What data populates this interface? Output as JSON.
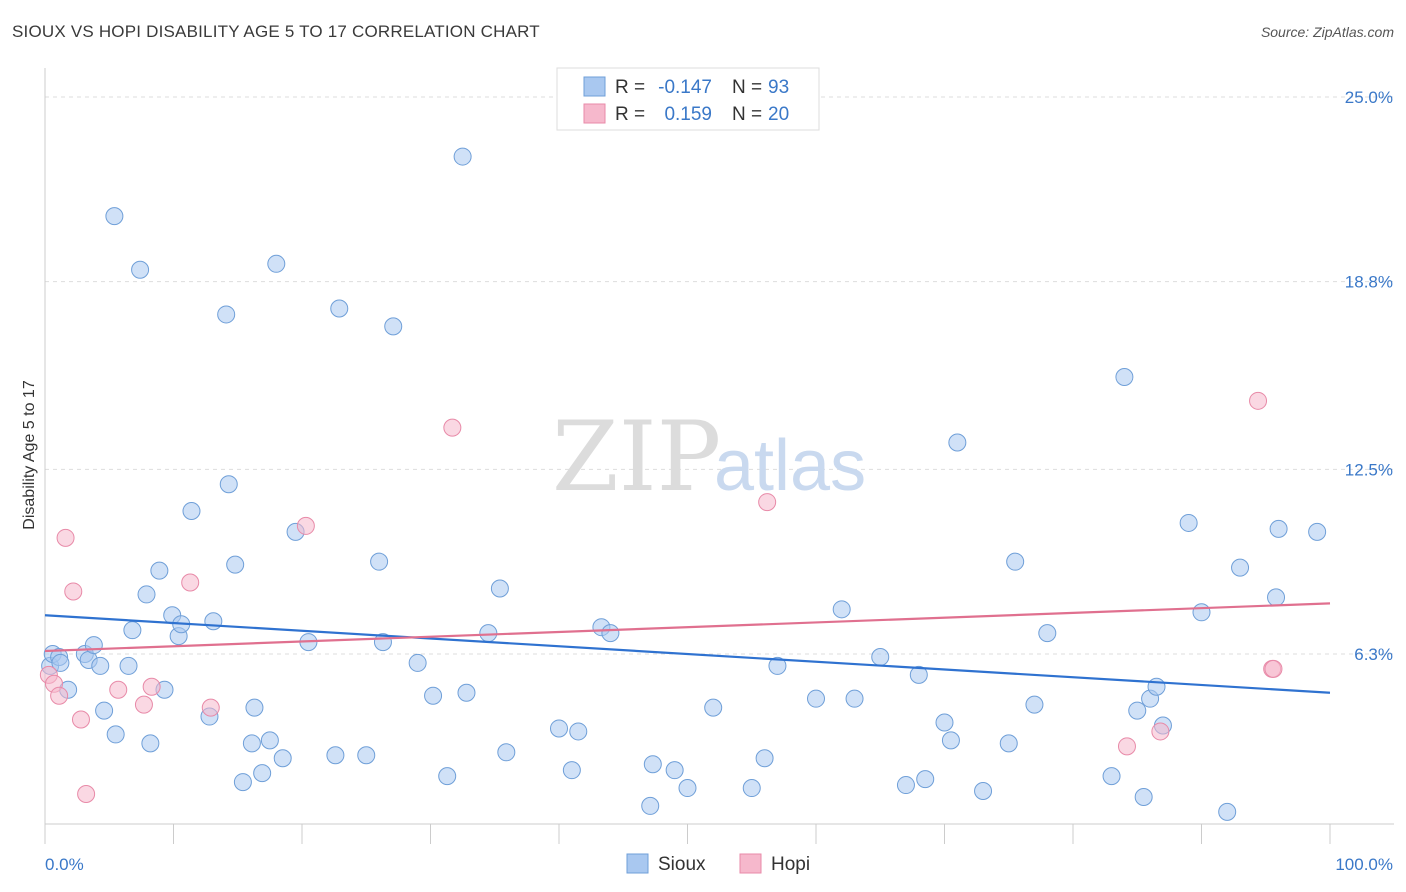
{
  "title": "SIOUX VS HOPI DISABILITY AGE 5 TO 17 CORRELATION CHART",
  "source": "Source: ZipAtlas.com",
  "watermark": {
    "zip": "ZIP",
    "atlas": "atlas"
  },
  "colors": {
    "sioux_fill": "#a9c8f0",
    "sioux_stroke": "#6f9fd8",
    "sioux_line": "#2f72d0",
    "hopi_fill": "#f6b8cc",
    "hopi_stroke": "#e88aa8",
    "hopi_line": "#e0708f",
    "axis_text": "#3a78c8",
    "grid": "#dddddd"
  },
  "legend": {
    "rows": [
      {
        "r_label": "R =",
        "r_value": "-0.147",
        "n_label": "N =",
        "n_value": "93"
      },
      {
        "r_label": "R =",
        "r_value": "0.159",
        "n_label": "N =",
        "n_value": "20"
      }
    ]
  },
  "bottom_legend": {
    "sioux": "Sioux",
    "hopi": "Hopi"
  },
  "chart_data": {
    "type": "scatter",
    "title": "SIOUX VS HOPI DISABILITY AGE 5 TO 17 CORRELATION CHART",
    "xlabel": "",
    "ylabel": "Disability Age 5 to 17",
    "xlim": [
      0,
      100
    ],
    "ylim": [
      0,
      26
    ],
    "x_tick_labels": [
      "0.0%",
      "100.0%"
    ],
    "y_ticks": [
      6.3,
      12.5,
      18.8,
      25.0
    ],
    "y_tick_labels": [
      "6.3%",
      "12.5%",
      "18.8%",
      "25.0%"
    ],
    "grid": true,
    "series": [
      {
        "name": "Sioux",
        "R": -0.147,
        "N": 93,
        "trend": {
          "x": [
            0,
            100
          ],
          "y": [
            7.6,
            5.0
          ]
        },
        "points": [
          [
            0.4,
            5.9
          ],
          [
            0.6,
            6.3
          ],
          [
            1.1,
            6.2
          ],
          [
            1.2,
            6.0
          ],
          [
            1.8,
            5.1
          ],
          [
            3.1,
            6.3
          ],
          [
            3.4,
            6.1
          ],
          [
            3.8,
            6.6
          ],
          [
            4.3,
            5.9
          ],
          [
            4.6,
            4.4
          ],
          [
            5.5,
            3.6
          ],
          [
            5.4,
            21.0
          ],
          [
            6.5,
            5.9
          ],
          [
            6.8,
            7.1
          ],
          [
            7.4,
            19.2
          ],
          [
            7.9,
            8.3
          ],
          [
            8.2,
            3.3
          ],
          [
            8.9,
            9.1
          ],
          [
            9.3,
            5.1
          ],
          [
            9.9,
            7.6
          ],
          [
            10.4,
            6.9
          ],
          [
            10.6,
            7.3
          ],
          [
            11.4,
            11.1
          ],
          [
            12.8,
            4.2
          ],
          [
            13.1,
            7.4
          ],
          [
            14.1,
            17.7
          ],
          [
            14.3,
            12.0
          ],
          [
            14.8,
            9.3
          ],
          [
            15.4,
            2.0
          ],
          [
            16.3,
            4.5
          ],
          [
            16.1,
            3.3
          ],
          [
            16.9,
            2.3
          ],
          [
            17.5,
            3.4
          ],
          [
            18.0,
            19.4
          ],
          [
            18.5,
            2.8
          ],
          [
            19.5,
            10.4
          ],
          [
            20.5,
            6.7
          ],
          [
            22.9,
            17.9
          ],
          [
            22.6,
            2.9
          ],
          [
            25.0,
            2.9
          ],
          [
            26.0,
            9.4
          ],
          [
            26.3,
            6.7
          ],
          [
            27.1,
            17.3
          ],
          [
            29.0,
            6.0
          ],
          [
            30.2,
            4.9
          ],
          [
            31.3,
            2.2
          ],
          [
            32.5,
            23.0
          ],
          [
            32.8,
            5.0
          ],
          [
            34.5,
            7.0
          ],
          [
            35.4,
            8.5
          ],
          [
            35.9,
            3.0
          ],
          [
            40.0,
            3.8
          ],
          [
            41.0,
            2.4
          ],
          [
            41.5,
            3.7
          ],
          [
            43.3,
            7.2
          ],
          [
            44.0,
            7.0
          ],
          [
            47.1,
            1.2
          ],
          [
            47.3,
            2.6
          ],
          [
            49.0,
            2.4
          ],
          [
            50.0,
            1.8
          ],
          [
            52.0,
            4.5
          ],
          [
            55.0,
            1.8
          ],
          [
            56.0,
            2.8
          ],
          [
            57.0,
            5.9
          ],
          [
            60.0,
            4.8
          ],
          [
            62.0,
            7.8
          ],
          [
            63.0,
            4.8
          ],
          [
            65.0,
            6.2
          ],
          [
            67.0,
            1.9
          ],
          [
            68.0,
            5.6
          ],
          [
            68.5,
            2.1
          ],
          [
            70.0,
            4.0
          ],
          [
            70.5,
            3.4
          ],
          [
            71.0,
            13.4
          ],
          [
            73.0,
            1.7
          ],
          [
            75.0,
            3.3
          ],
          [
            75.5,
            9.4
          ],
          [
            77.0,
            4.6
          ],
          [
            78.0,
            7.0
          ],
          [
            83.0,
            2.2
          ],
          [
            84.0,
            15.6
          ],
          [
            85.0,
            4.4
          ],
          [
            85.5,
            1.5
          ],
          [
            86.0,
            4.8
          ],
          [
            86.5,
            5.2
          ],
          [
            87.0,
            3.9
          ],
          [
            89.0,
            10.7
          ],
          [
            90.0,
            7.7
          ],
          [
            92.0,
            1.0
          ],
          [
            93.0,
            9.2
          ],
          [
            96.0,
            10.5
          ],
          [
            95.8,
            8.2
          ],
          [
            99.0,
            10.4
          ]
        ]
      },
      {
        "name": "Hopi",
        "R": 0.159,
        "N": 20,
        "trend": {
          "x": [
            0,
            100
          ],
          "y": [
            6.4,
            8.0
          ]
        },
        "points": [
          [
            0.3,
            5.6
          ],
          [
            0.7,
            5.3
          ],
          [
            1.1,
            4.9
          ],
          [
            1.6,
            10.2
          ],
          [
            2.2,
            8.4
          ],
          [
            2.8,
            4.1
          ],
          [
            3.2,
            1.6
          ],
          [
            5.7,
            5.1
          ],
          [
            7.7,
            4.6
          ],
          [
            8.3,
            5.2
          ],
          [
            11.3,
            8.7
          ],
          [
            12.9,
            4.5
          ],
          [
            20.3,
            10.6
          ],
          [
            31.7,
            13.9
          ],
          [
            56.2,
            11.4
          ],
          [
            84.2,
            3.2
          ],
          [
            86.8,
            3.7
          ],
          [
            94.4,
            14.8
          ],
          [
            95.5,
            5.8
          ],
          [
            95.6,
            5.8
          ]
        ]
      }
    ]
  }
}
